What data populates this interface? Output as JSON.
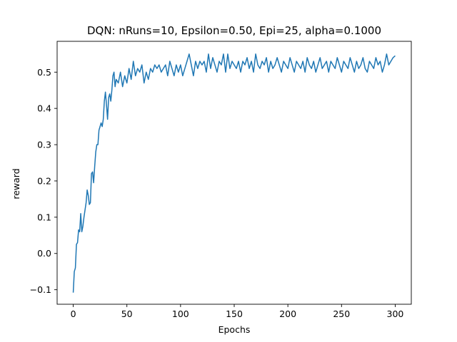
{
  "chart_data": {
    "type": "line",
    "title": "DQN: nRuns=10, Epsilon=0.50, Epi=25, alpha=0.1000",
    "xlabel": "Epochs",
    "ylabel": "reward",
    "xlim": [
      -15,
      315
    ],
    "ylim": [
      -0.14,
      0.585
    ],
    "xticks": [
      0,
      50,
      100,
      150,
      200,
      250,
      300
    ],
    "xtick_labels": [
      "0",
      "50",
      "100",
      "150",
      "200",
      "250",
      "300"
    ],
    "yticks": [
      -0.1,
      0.0,
      0.1,
      0.2,
      0.3,
      0.4,
      0.5
    ],
    "ytick_labels": [
      "−0.1",
      "0.0",
      "0.1",
      "0.2",
      "0.3",
      "0.4",
      "0.5"
    ],
    "grid": false,
    "legend": "none",
    "line_color": "#1f77b4",
    "series": [
      {
        "x": [
          0,
          1,
          2,
          3,
          4,
          5,
          6,
          7,
          8,
          9,
          10,
          11,
          12,
          13,
          14,
          15,
          16,
          17,
          18,
          19,
          20,
          21,
          22,
          23,
          24,
          25,
          26,
          27,
          28,
          29,
          30,
          31,
          32,
          33,
          34,
          35,
          36,
          37,
          38,
          39,
          40,
          42,
          44,
          46,
          48,
          50,
          52,
          54,
          56,
          58,
          60,
          62,
          64,
          66,
          68,
          70,
          72,
          74,
          76,
          78,
          80,
          82,
          84,
          86,
          88,
          90,
          92,
          94,
          96,
          98,
          100,
          102,
          104,
          106,
          108,
          110,
          112,
          114,
          116,
          118,
          120,
          122,
          124,
          126,
          128,
          130,
          132,
          134,
          136,
          138,
          140,
          142,
          144,
          146,
          148,
          150,
          152,
          154,
          156,
          158,
          160,
          162,
          164,
          166,
          168,
          170,
          172,
          174,
          176,
          178,
          180,
          182,
          184,
          186,
          188,
          190,
          192,
          194,
          196,
          198,
          200,
          202,
          204,
          206,
          208,
          210,
          212,
          214,
          216,
          218,
          220,
          222,
          224,
          226,
          228,
          230,
          232,
          234,
          236,
          238,
          240,
          242,
          244,
          246,
          248,
          250,
          252,
          254,
          256,
          258,
          260,
          262,
          264,
          266,
          268,
          270,
          272,
          274,
          276,
          278,
          280,
          282,
          284,
          286,
          288,
          290,
          292,
          294,
          296,
          298,
          300
        ],
        "values": [
          -0.108,
          -0.05,
          -0.04,
          0.025,
          0.03,
          0.065,
          0.06,
          0.11,
          0.06,
          0.075,
          0.1,
          0.12,
          0.14,
          0.175,
          0.16,
          0.135,
          0.14,
          0.22,
          0.225,
          0.195,
          0.24,
          0.28,
          0.3,
          0.3,
          0.34,
          0.35,
          0.36,
          0.35,
          0.37,
          0.42,
          0.445,
          0.41,
          0.37,
          0.43,
          0.44,
          0.42,
          0.45,
          0.49,
          0.5,
          0.46,
          0.48,
          0.47,
          0.5,
          0.46,
          0.49,
          0.47,
          0.51,
          0.48,
          0.53,
          0.49,
          0.51,
          0.5,
          0.52,
          0.47,
          0.5,
          0.48,
          0.51,
          0.5,
          0.52,
          0.51,
          0.52,
          0.5,
          0.51,
          0.52,
          0.49,
          0.53,
          0.51,
          0.49,
          0.52,
          0.5,
          0.52,
          0.49,
          0.51,
          0.53,
          0.55,
          0.52,
          0.49,
          0.53,
          0.51,
          0.53,
          0.52,
          0.53,
          0.5,
          0.55,
          0.51,
          0.54,
          0.52,
          0.5,
          0.53,
          0.52,
          0.55,
          0.5,
          0.55,
          0.51,
          0.53,
          0.52,
          0.51,
          0.53,
          0.5,
          0.53,
          0.52,
          0.54,
          0.51,
          0.53,
          0.5,
          0.55,
          0.52,
          0.51,
          0.53,
          0.52,
          0.54,
          0.5,
          0.53,
          0.51,
          0.52,
          0.54,
          0.52,
          0.5,
          0.53,
          0.52,
          0.51,
          0.54,
          0.52,
          0.5,
          0.53,
          0.52,
          0.51,
          0.53,
          0.5,
          0.54,
          0.52,
          0.51,
          0.53,
          0.5,
          0.52,
          0.54,
          0.51,
          0.52,
          0.53,
          0.5,
          0.53,
          0.52,
          0.51,
          0.54,
          0.52,
          0.5,
          0.53,
          0.52,
          0.51,
          0.54,
          0.52,
          0.5,
          0.53,
          0.51,
          0.52,
          0.54,
          0.51,
          0.5,
          0.53,
          0.52,
          0.51,
          0.54,
          0.52,
          0.53,
          0.5,
          0.52,
          0.55,
          0.52,
          0.53,
          0.54,
          0.545
        ]
      }
    ]
  }
}
